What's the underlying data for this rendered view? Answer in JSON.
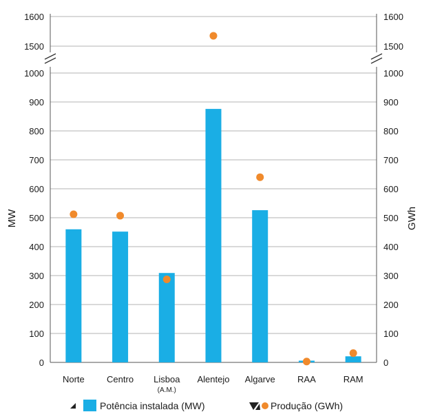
{
  "chart_data": {
    "type": "bar",
    "categories": [
      "Norte",
      "Centro",
      "Lisboa",
      "Alentejo",
      "Algarve",
      "RAA",
      "RAM"
    ],
    "category_sublabels": [
      "",
      "",
      "(A.M.)",
      "",
      "",
      "",
      ""
    ],
    "series": [
      {
        "name": "Potência instalada (MW)",
        "type": "bar",
        "axis": "left",
        "color": "#1aaee5",
        "values": [
          460,
          452,
          309,
          876,
          526,
          6,
          21
        ]
      },
      {
        "name": "Produção (GWh)",
        "type": "scatter",
        "axis": "right",
        "color": "#f08a2c",
        "values": [
          512,
          507,
          287,
          1535,
          640,
          3,
          32
        ]
      }
    ],
    "ylabel": "MW",
    "y2label": "GWh",
    "ylim": [
      0,
      1600
    ],
    "y2lim": [
      0,
      1600
    ],
    "axis_break": [
      1000,
      1450
    ],
    "yticks": [
      0,
      100,
      200,
      300,
      400,
      500,
      600,
      700,
      800,
      900,
      1000,
      1500,
      1600
    ],
    "grid": true,
    "legend_position": "bottom"
  }
}
